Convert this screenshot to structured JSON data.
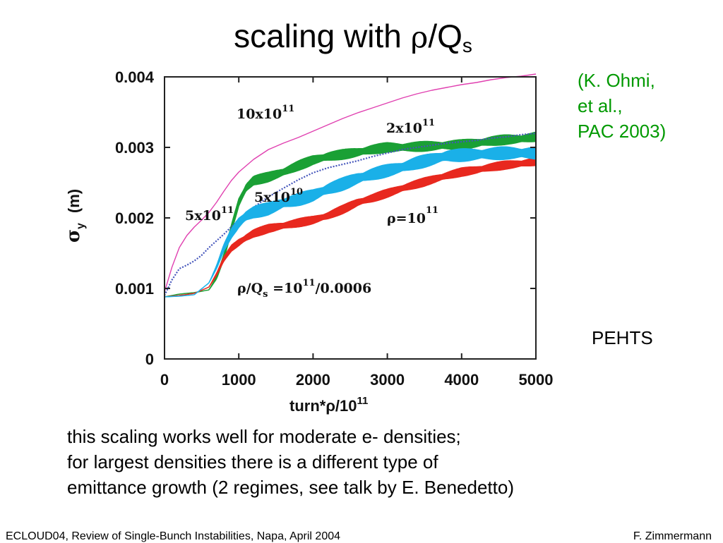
{
  "slide": {
    "title_prefix": "scaling with ",
    "title_rho": "ρ",
    "title_slash": "/Q",
    "title_sub": "s",
    "citation": [
      "(K. Ohmi,",
      "et al.,",
      "PAC 2003)"
    ],
    "citation_color": "#009900",
    "code_label": "PEHTS",
    "notes": [
      "this scaling works well for moderate e- densities;",
      "for largest densities there is a different type of",
      "emittance growth (2 regimes, see talk by E. Benedetto)"
    ],
    "footer_left": "ECLOUD04, Review of Single-Bunch Instabilities, Napa, April 2004",
    "footer_right": "F. Zimmermann"
  },
  "chart_data": {
    "type": "line",
    "xlabel_main": "turn*ρ/10",
    "xlabel_sup": "11",
    "ylabel_main": "σ",
    "ylabel_sub": "y",
    "ylabel_unit": "(m)",
    "xlim": [
      0,
      5000
    ],
    "ylim": [
      0,
      0.004
    ],
    "x_ticks": [
      "0",
      "1000",
      "2000",
      "3000",
      "4000",
      "5000"
    ],
    "y_ticks": [
      "0",
      "0.001",
      "0.002",
      "0.003",
      "0.004"
    ],
    "grid": false,
    "annotations": [
      {
        "main": "10x10",
        "sup": "11"
      },
      {
        "main": "2x10",
        "sup": "11"
      },
      {
        "main": "5x10",
        "sup": "10"
      },
      {
        "main": "5x10",
        "sup": "11"
      },
      {
        "main": "ρ=10",
        "sup": "11"
      },
      {
        "main": "ρ/Q",
        "sub": "s",
        "rest": " =10",
        "sup": "11",
        "tail": "/0.0006"
      }
    ],
    "series": [
      {
        "color": "#e040b0",
        "style": "thin",
        "x": [
          0,
          100,
          200,
          300,
          400,
          500,
          600,
          700,
          800,
          900,
          1000,
          1200,
          1400,
          1600,
          1800,
          2000,
          2200,
          2400,
          2600,
          2800,
          3000,
          3200,
          3400,
          3600,
          3800,
          4000,
          4200,
          4400,
          4600,
          4800,
          5000
        ],
        "y": [
          0.00095,
          0.0013,
          0.00158,
          0.00175,
          0.00187,
          0.00197,
          0.00208,
          0.00222,
          0.00238,
          0.00253,
          0.00265,
          0.00283,
          0.00297,
          0.00306,
          0.00314,
          0.00323,
          0.00332,
          0.00341,
          0.00349,
          0.00356,
          0.00363,
          0.0037,
          0.00376,
          0.00381,
          0.00385,
          0.00389,
          0.00392,
          0.00396,
          0.00399,
          0.00401,
          0.00404
        ]
      },
      {
        "color": "#1aa035",
        "style": "band",
        "x": [
          0,
          200,
          400,
          600,
          700,
          800,
          900,
          1000,
          1100,
          1200,
          1400,
          1600,
          1800,
          2000,
          2200,
          2400,
          2600,
          2800,
          3000,
          3200,
          3400,
          3600,
          3800,
          4000,
          4200,
          4400,
          4600,
          4800,
          5000
        ],
        "y": [
          0.00088,
          0.00092,
          0.00094,
          0.00098,
          0.00115,
          0.00145,
          0.00185,
          0.00222,
          0.00243,
          0.00253,
          0.00258,
          0.00265,
          0.00274,
          0.00282,
          0.00287,
          0.0029,
          0.00293,
          0.00297,
          0.003,
          0.003,
          0.00301,
          0.00302,
          0.00303,
          0.00304,
          0.00306,
          0.00309,
          0.00311,
          0.00312,
          0.00315
        ],
        "amp": 7e-05
      },
      {
        "color": "#4455bb",
        "style": "dotted",
        "x": [
          0,
          100,
          200,
          300,
          400,
          500,
          600,
          800,
          1000,
          1200,
          1400,
          1600,
          1800,
          2000,
          2200,
          2400,
          2600,
          2800,
          3000,
          3200,
          3400,
          3600,
          3800,
          4000,
          4200,
          4400,
          4600,
          4800,
          5000
        ],
        "y": [
          0.0009,
          0.00112,
          0.00128,
          0.00133,
          0.00139,
          0.00147,
          0.00158,
          0.00177,
          0.00198,
          0.00215,
          0.0023,
          0.00242,
          0.00254,
          0.00264,
          0.00271,
          0.00276,
          0.00281,
          0.00287,
          0.00292,
          0.00297,
          0.003,
          0.00303,
          0.00306,
          0.00308,
          0.0031,
          0.00313,
          0.00315,
          0.00318,
          0.0032
        ]
      },
      {
        "color": "#e8281e",
        "style": "band",
        "x": [
          0,
          200,
          400,
          600,
          700,
          800,
          900,
          1000,
          1100,
          1200,
          1400,
          1600,
          1800,
          2000,
          2200,
          2400,
          2600,
          2800,
          3000,
          3200,
          3400,
          3600,
          3800,
          4000,
          4200,
          4400,
          4600,
          4800,
          5000
        ],
        "y": [
          0.00088,
          0.0009,
          0.00093,
          0.00102,
          0.0012,
          0.00142,
          0.00157,
          0.00165,
          0.00172,
          0.00178,
          0.00185,
          0.00189,
          0.00193,
          0.00197,
          0.00203,
          0.00212,
          0.00222,
          0.00228,
          0.00235,
          0.00242,
          0.00248,
          0.00254,
          0.0026,
          0.00265,
          0.00268,
          0.00272,
          0.00275,
          0.00277,
          0.0028
        ],
        "amp": 6e-05
      },
      {
        "color": "#1ab0e8",
        "style": "band",
        "x": [
          0,
          200,
          400,
          600,
          700,
          800,
          900,
          1000,
          1100,
          1200,
          1400,
          1600,
          1800,
          2000,
          2200,
          2400,
          2600,
          2800,
          3000,
          3200,
          3400,
          3600,
          3800,
          4000,
          4200,
          4400,
          4600,
          4800,
          5000
        ],
        "y": [
          0.00088,
          0.00089,
          0.00091,
          0.00108,
          0.0013,
          0.00158,
          0.00178,
          0.00193,
          0.00203,
          0.00208,
          0.00213,
          0.00221,
          0.00226,
          0.00232,
          0.00241,
          0.00248,
          0.00256,
          0.00262,
          0.00267,
          0.00272,
          0.00278,
          0.00283,
          0.00288,
          0.00289,
          0.0029,
          0.00291,
          0.00292,
          0.00292,
          0.00292
        ],
        "amp": 9e-05
      }
    ]
  }
}
